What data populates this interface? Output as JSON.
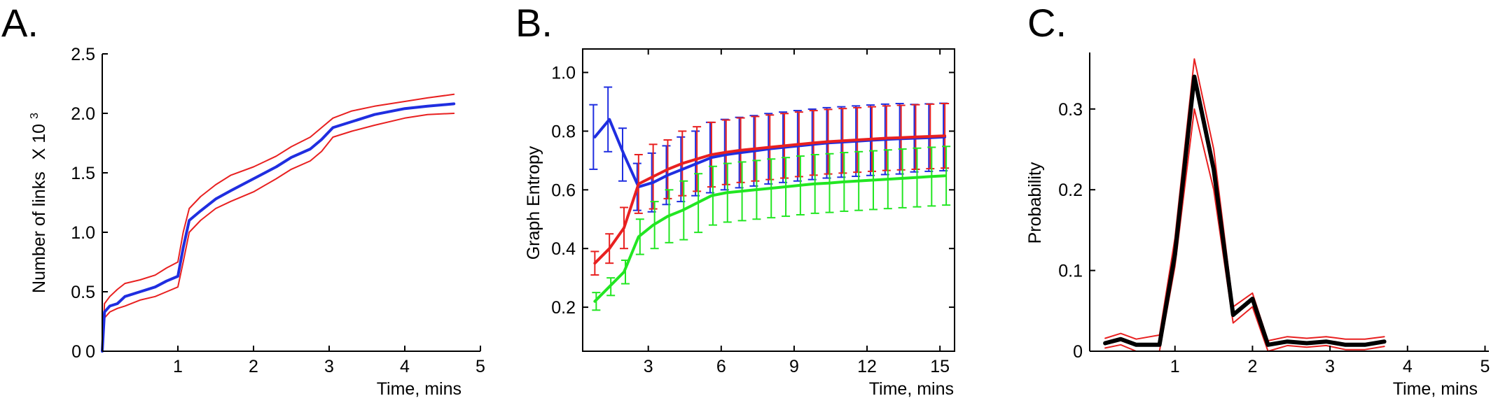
{
  "chart_data": [
    {
      "panel": "A.",
      "type": "line",
      "ylabel": "Number of links",
      "ylabel_suffix": "X 10",
      "ylabel_exp": "3",
      "xlabel": "Time, mins",
      "xlim": [
        0,
        5
      ],
      "ylim": [
        0,
        2.5
      ],
      "xticks": [
        "1",
        "2",
        "3",
        "4",
        "5"
      ],
      "yticks": [
        "0",
        "0.5",
        "1.0",
        "1.5",
        "2.0",
        "2.5"
      ],
      "x_origin_label": "0",
      "grid": false,
      "colors": {
        "mean": "#1f2ee0",
        "bounds": "#e82020"
      },
      "series": [
        {
          "role": "mean",
          "color": "#1f2ee0",
          "width": 4,
          "x": [
            0,
            0.03,
            0.1,
            0.2,
            0.3,
            0.5,
            0.7,
            0.85,
            1.0,
            1.07,
            1.15,
            1.3,
            1.5,
            1.7,
            2.0,
            2.3,
            2.5,
            2.75,
            2.9,
            3.05,
            3.3,
            3.6,
            4.0,
            4.3,
            4.65
          ],
          "y": [
            0,
            0.33,
            0.38,
            0.4,
            0.46,
            0.5,
            0.54,
            0.59,
            0.63,
            0.87,
            1.1,
            1.18,
            1.28,
            1.35,
            1.45,
            1.55,
            1.63,
            1.7,
            1.78,
            1.88,
            1.93,
            1.99,
            2.04,
            2.06,
            2.08
          ]
        },
        {
          "role": "upper",
          "color": "#e82020",
          "width": 2,
          "x": [
            0,
            0.03,
            0.1,
            0.2,
            0.3,
            0.5,
            0.7,
            0.85,
            1.0,
            1.07,
            1.15,
            1.3,
            1.5,
            1.7,
            2.0,
            2.3,
            2.5,
            2.75,
            2.9,
            3.05,
            3.3,
            3.6,
            4.0,
            4.3,
            4.65
          ],
          "y": [
            0,
            0.4,
            0.46,
            0.52,
            0.57,
            0.6,
            0.64,
            0.7,
            0.75,
            1.0,
            1.2,
            1.3,
            1.4,
            1.48,
            1.55,
            1.64,
            1.72,
            1.8,
            1.88,
            1.96,
            2.02,
            2.06,
            2.1,
            2.13,
            2.16
          ]
        },
        {
          "role": "lower",
          "color": "#e82020",
          "width": 2,
          "x": [
            0,
            0.03,
            0.1,
            0.2,
            0.3,
            0.5,
            0.7,
            0.85,
            1.0,
            1.07,
            1.15,
            1.3,
            1.5,
            1.7,
            2.0,
            2.3,
            2.5,
            2.75,
            2.9,
            3.05,
            3.3,
            3.6,
            4.0,
            4.3,
            4.65
          ],
          "y": [
            0,
            0.28,
            0.33,
            0.36,
            0.38,
            0.43,
            0.46,
            0.5,
            0.54,
            0.75,
            1.0,
            1.1,
            1.2,
            1.26,
            1.34,
            1.45,
            1.53,
            1.6,
            1.68,
            1.8,
            1.85,
            1.9,
            1.96,
            1.99,
            2.0
          ]
        }
      ]
    },
    {
      "panel": "B.",
      "type": "line",
      "ylabel": "Graph Entropy",
      "xlabel": "Time, mins",
      "xlim": [
        0.3,
        15.6
      ],
      "ylim": [
        0.05,
        1.08
      ],
      "xticks": [
        "3",
        "6",
        "9",
        "12",
        "15"
      ],
      "yticks": [
        "0.2",
        "0.4",
        "0.6",
        "0.8",
        "1.0"
      ],
      "grid": false,
      "colors": {
        "red": "#e82020",
        "blue": "#1f2ee0",
        "green": "#22e622"
      },
      "x": [
        0.8,
        1.4,
        2.0,
        2.6,
        3.2,
        3.8,
        4.4,
        5.0,
        5.6,
        6.2,
        6.8,
        7.4,
        8.0,
        8.6,
        9.2,
        9.8,
        10.4,
        11.0,
        11.6,
        12.2,
        12.8,
        13.4,
        14.0,
        14.6,
        15.2
      ],
      "series": [
        {
          "color": "#1f2ee0",
          "values": [
            0.78,
            0.84,
            0.72,
            0.61,
            0.625,
            0.65,
            0.67,
            0.69,
            0.71,
            0.72,
            0.727,
            0.733,
            0.74,
            0.745,
            0.75,
            0.755,
            0.76,
            0.763,
            0.766,
            0.769,
            0.772,
            0.774,
            0.776,
            0.778,
            0.78
          ],
          "errors": [
            0.11,
            0.11,
            0.09,
            0.08,
            0.1,
            0.1,
            0.11,
            0.11,
            0.12,
            0.12,
            0.12,
            0.12,
            0.12,
            0.12,
            0.12,
            0.12,
            0.12,
            0.12,
            0.12,
            0.12,
            0.12,
            0.12,
            0.115,
            0.115,
            0.115
          ]
        },
        {
          "color": "#e82020",
          "values": [
            0.35,
            0.4,
            0.47,
            0.62,
            0.645,
            0.67,
            0.69,
            0.705,
            0.72,
            0.728,
            0.735,
            0.74,
            0.745,
            0.75,
            0.755,
            0.76,
            0.764,
            0.767,
            0.77,
            0.773,
            0.776,
            0.778,
            0.78,
            0.782,
            0.784
          ],
          "errors": [
            0.04,
            0.05,
            0.07,
            0.1,
            0.11,
            0.1,
            0.11,
            0.11,
            0.11,
            0.11,
            0.11,
            0.11,
            0.11,
            0.11,
            0.11,
            0.11,
            0.11,
            0.11,
            0.11,
            0.11,
            0.11,
            0.11,
            0.11,
            0.11,
            0.11
          ]
        },
        {
          "color": "#22e622",
          "values": [
            0.22,
            0.27,
            0.32,
            0.44,
            0.48,
            0.51,
            0.53,
            0.555,
            0.58,
            0.59,
            0.595,
            0.6,
            0.605,
            0.61,
            0.615,
            0.62,
            0.623,
            0.627,
            0.63,
            0.633,
            0.636,
            0.639,
            0.642,
            0.645,
            0.648
          ],
          "errors": [
            0.03,
            0.03,
            0.04,
            0.06,
            0.08,
            0.09,
            0.1,
            0.1,
            0.1,
            0.1,
            0.1,
            0.1,
            0.1,
            0.1,
            0.1,
            0.1,
            0.1,
            0.1,
            0.1,
            0.1,
            0.1,
            0.1,
            0.1,
            0.1,
            0.1
          ]
        }
      ]
    },
    {
      "panel": "C.",
      "type": "line",
      "ylabel": "Probability",
      "xlabel": "Time, mins",
      "xlim": [
        -0.1,
        5.05
      ],
      "ylim": [
        0,
        0.37
      ],
      "xticks": [
        "1",
        "2",
        "3",
        "4",
        "5"
      ],
      "yticks": [
        "0",
        "0.1",
        "0.2",
        "0.3"
      ],
      "grid": false,
      "colors": {
        "mean": "#000000",
        "bounds": "#e82020"
      },
      "x": [
        0.1,
        0.3,
        0.5,
        0.8,
        1.0,
        1.25,
        1.5,
        1.75,
        2.0,
        2.2,
        2.45,
        2.7,
        2.95,
        3.2,
        3.45,
        3.7
      ],
      "series": [
        {
          "role": "mean",
          "color": "#000000",
          "width": 6,
          "values": [
            0.01,
            0.015,
            0.008,
            0.008,
            0.12,
            0.34,
            0.225,
            0.045,
            0.065,
            0.008,
            0.012,
            0.01,
            0.012,
            0.008,
            0.008,
            0.012
          ]
        },
        {
          "role": "upper",
          "color": "#e82020",
          "width": 2,
          "values": [
            0.016,
            0.022,
            0.015,
            0.02,
            0.14,
            0.362,
            0.25,
            0.055,
            0.072,
            0.013,
            0.018,
            0.016,
            0.018,
            0.015,
            0.015,
            0.018
          ]
        },
        {
          "role": "lower",
          "color": "#e82020",
          "width": 2,
          "values": [
            0.004,
            0.008,
            0.0,
            0.0,
            0.105,
            0.3,
            0.2,
            0.035,
            0.055,
            0.0,
            0.007,
            0.005,
            0.007,
            0.002,
            0.002,
            0.006
          ]
        }
      ]
    }
  ]
}
